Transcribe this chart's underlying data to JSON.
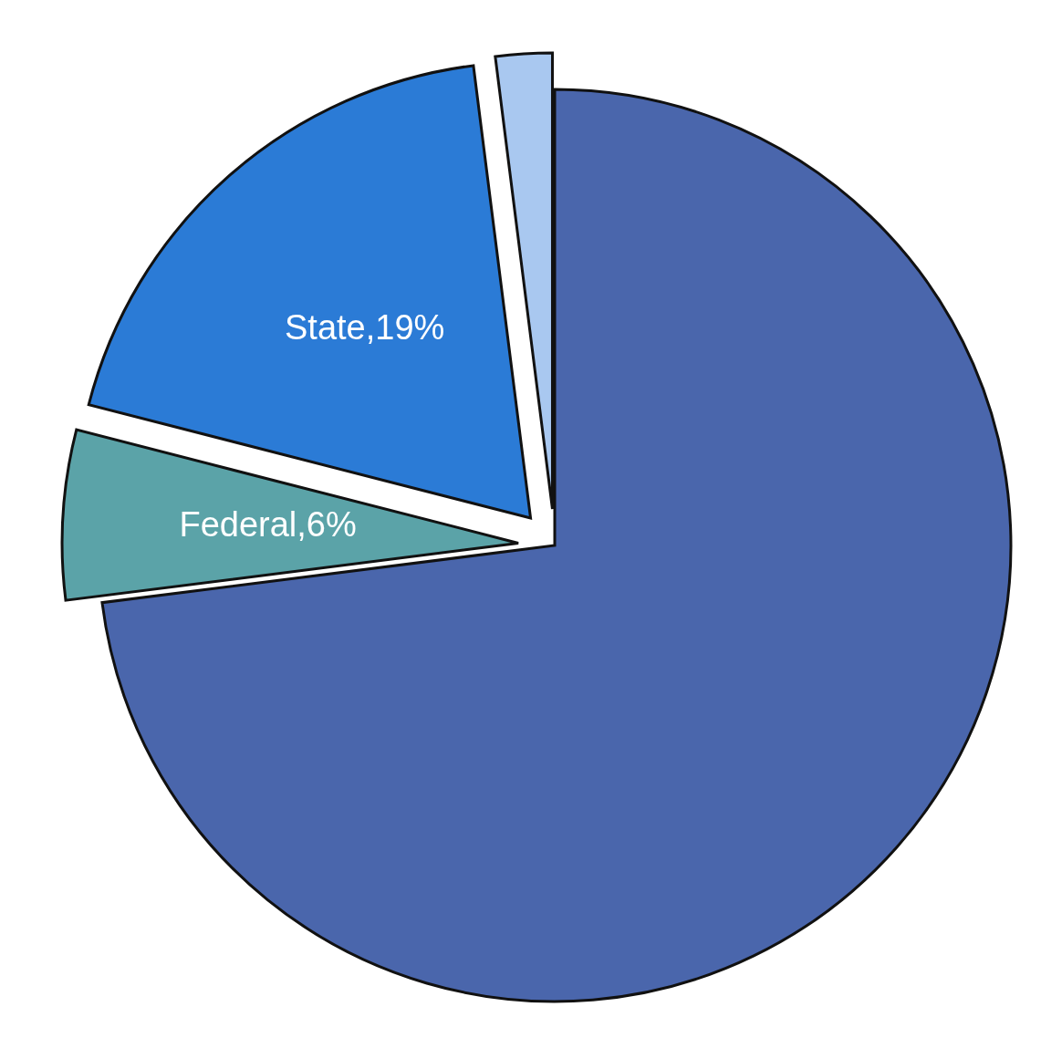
{
  "chart_data": {
    "type": "pie",
    "categories": [
      null,
      null,
      null,
      null
    ],
    "values": [
      73,
      6,
      19,
      2
    ],
    "colors": [
      "#4a66ac",
      "#5ba3a8",
      "#2b7bd6",
      "#a9c8f0"
    ],
    "value_labels": [
      null,
      "Federal,6%",
      "State,19%",
      null
    ]
  }
}
